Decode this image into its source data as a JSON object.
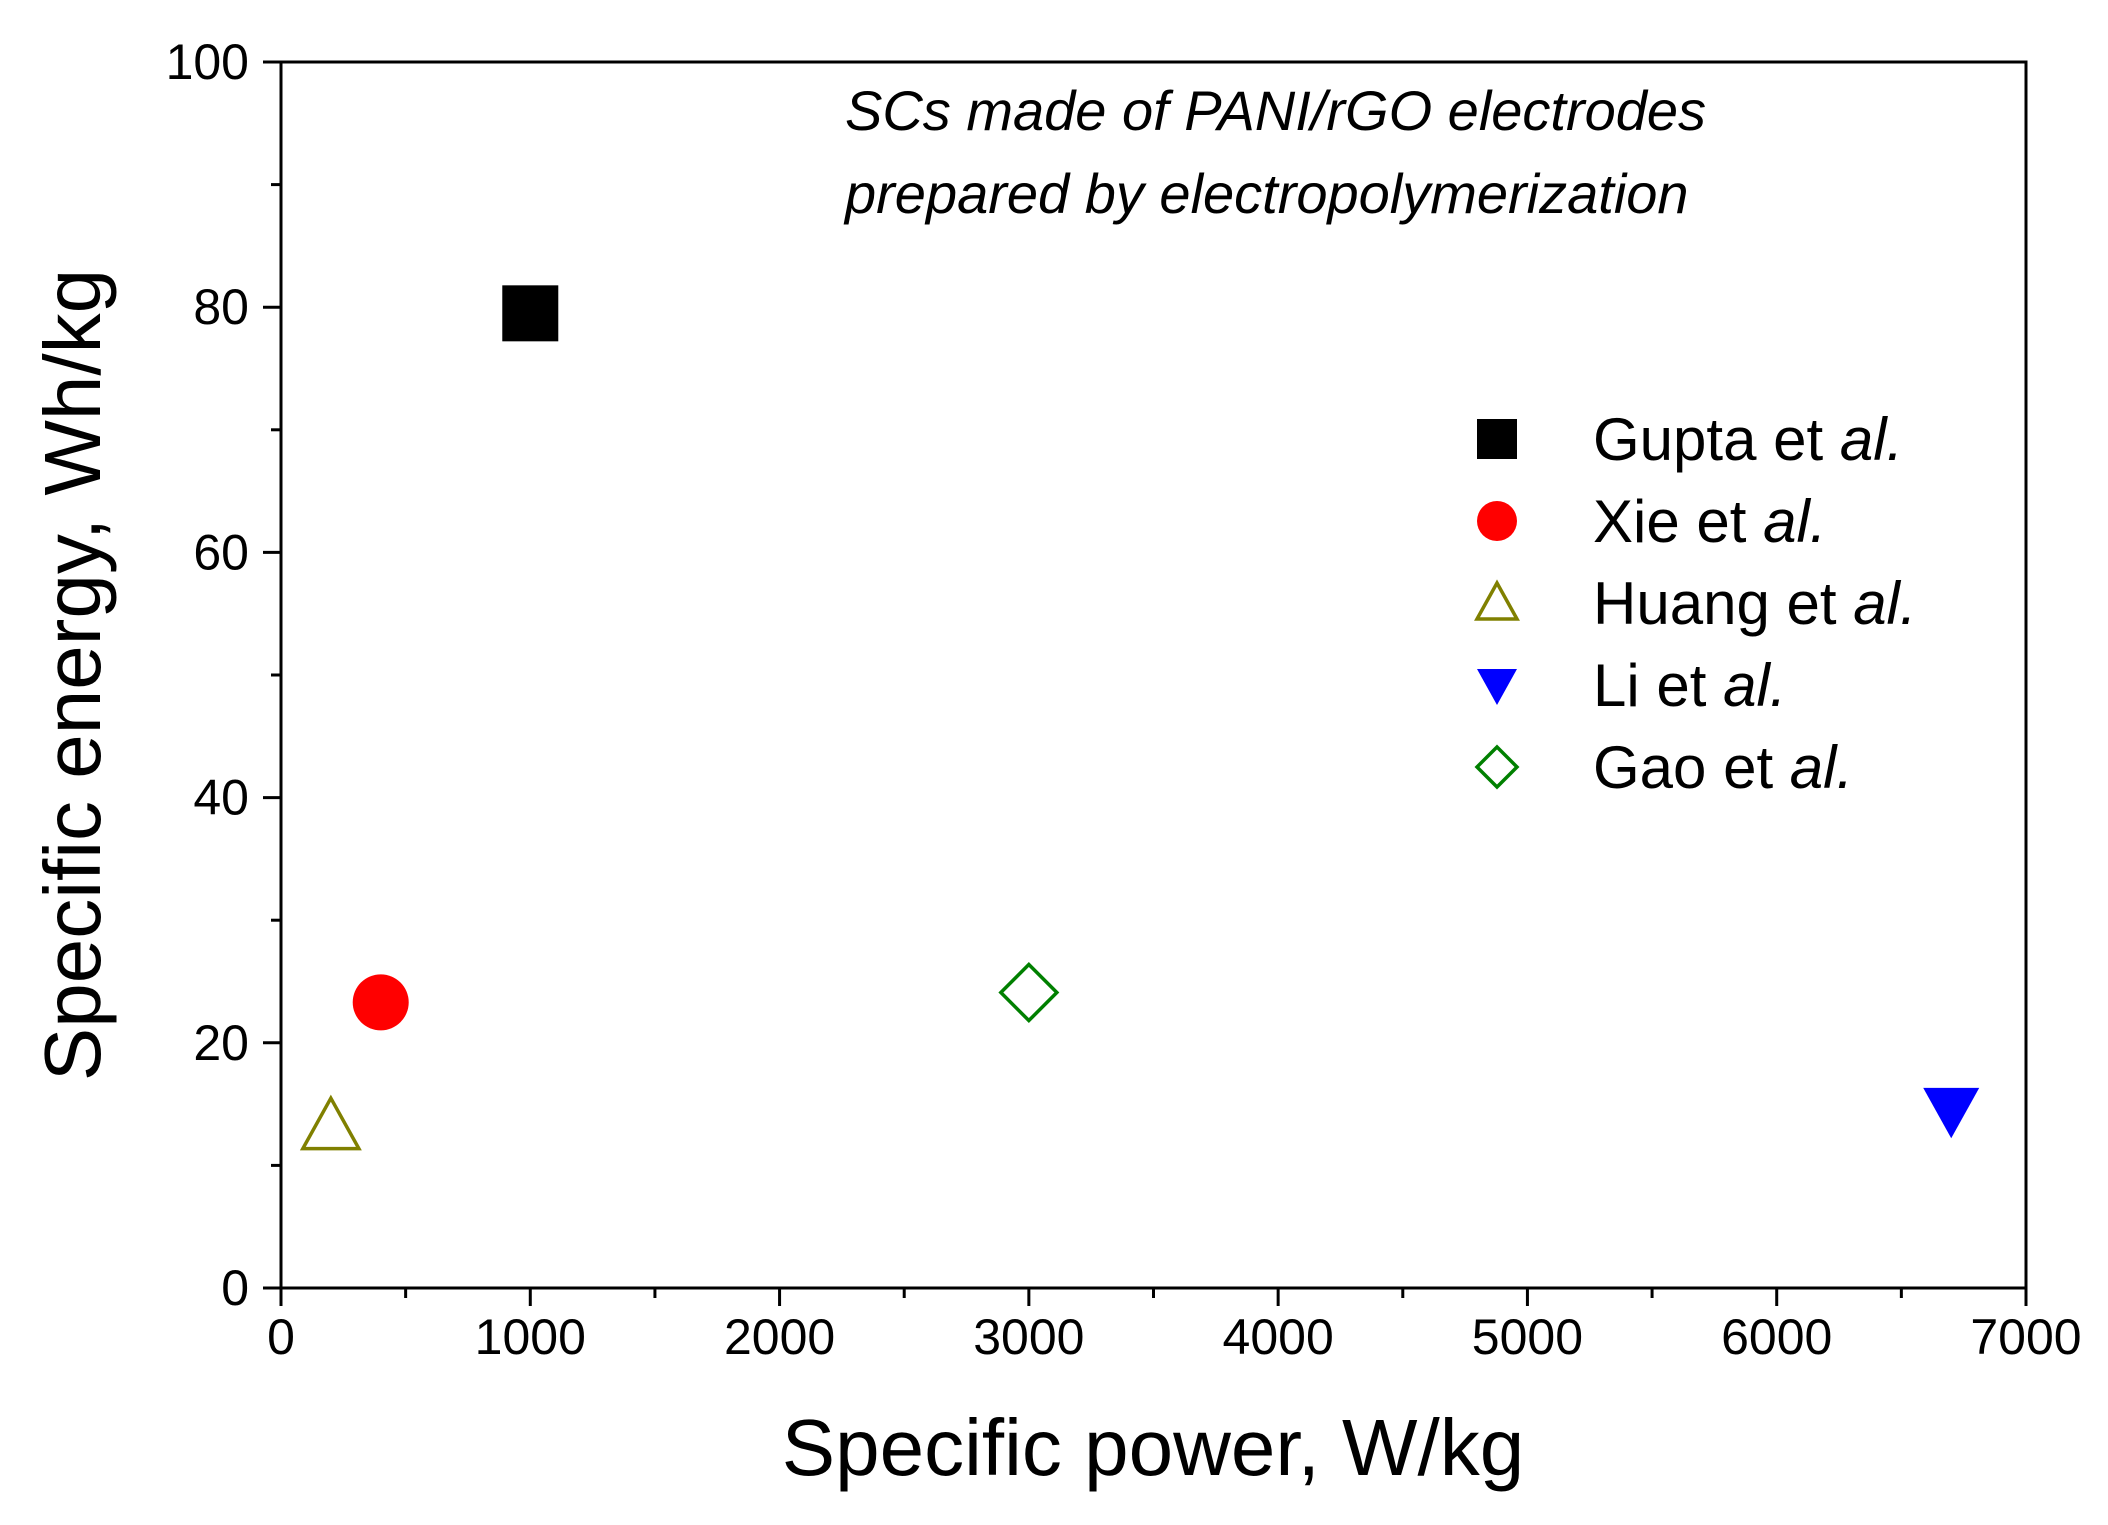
{
  "chart_data": {
    "type": "scatter",
    "title": "",
    "xlabel": "Specific power, W/kg",
    "ylabel": "Specific energy, Wh/kg",
    "xlim": [
      0,
      7000
    ],
    "ylim": [
      0,
      100
    ],
    "xticks": [
      0,
      1000,
      2000,
      3000,
      4000,
      5000,
      6000,
      7000
    ],
    "yticks": [
      0,
      20,
      40,
      60,
      80,
      100
    ],
    "grid": false,
    "legend_position": "right",
    "annotation": {
      "line1": "SCs made of PANI/rGO electrodes",
      "line2": "prepared by electropolymerization"
    },
    "series": [
      {
        "name": "Gupta et al.",
        "name_main": "Gupta et ",
        "name_italic": "al.",
        "marker": "square-filled",
        "color": "#000000",
        "points": [
          {
            "x": 1000,
            "y": 79.5
          }
        ]
      },
      {
        "name": "Xie et al.",
        "name_main": "Xie et ",
        "name_italic": "al.",
        "marker": "circle-filled",
        "color": "#ff0000",
        "points": [
          {
            "x": 400,
            "y": 23.3
          }
        ]
      },
      {
        "name": "Huang et al.",
        "name_main": "Huang et ",
        "name_italic": "al.",
        "marker": "triangle-up-open",
        "color": "#808000",
        "points": [
          {
            "x": 200,
            "y": 13.2
          }
        ]
      },
      {
        "name": "Li et al.",
        "name_main": "Li et ",
        "name_italic": "al.",
        "marker": "triangle-down-filled",
        "color": "#0000ff",
        "points": [
          {
            "x": 6700,
            "y": 14.5
          }
        ]
      },
      {
        "name": "Gao et al.",
        "name_main": "Gao et ",
        "name_italic": "al.",
        "marker": "diamond-open",
        "color": "#008000",
        "points": [
          {
            "x": 3000,
            "y": 24.1
          }
        ]
      }
    ]
  }
}
